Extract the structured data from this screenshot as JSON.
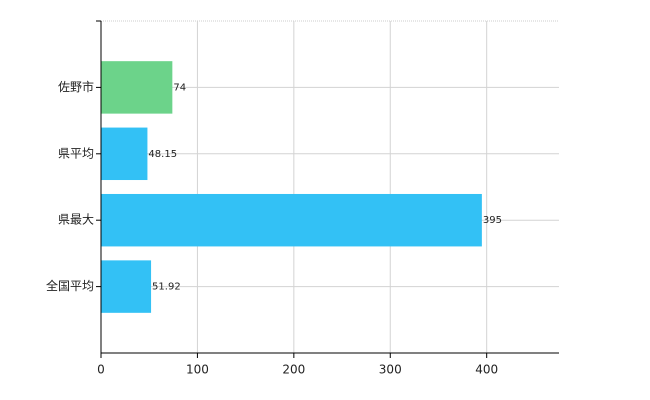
{
  "chart_data": {
    "type": "barh",
    "categories": [
      "佐野市",
      "県平均",
      "県最大",
      "全国平均"
    ],
    "values": [
      74,
      48.15,
      395,
      51.92
    ],
    "colors": [
      "#6cd38a",
      "#33c1f5",
      "#33c1f5",
      "#33c1f5"
    ],
    "xlim": [
      0,
      475
    ],
    "xticks": [
      0,
      100,
      200,
      300,
      400
    ],
    "grid": true
  }
}
